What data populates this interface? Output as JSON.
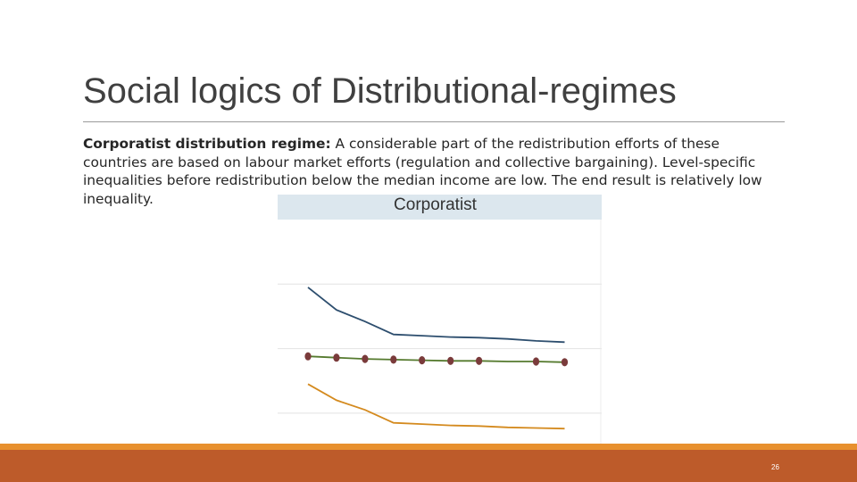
{
  "slide": {
    "title": "Social logics of Distributional-regimes",
    "body_bold": "Corporatist distribution regime:",
    "body_rest": " A considerable part of the redistribution efforts of these countries are based on labour market efforts (regulation and collective bargaining). Level-specific inequalities before redistribution below the median income are low. The end result is relatively low inequality.",
    "page_number": "26"
  },
  "colors": {
    "accent_orange": "#e8902e",
    "footer_rust": "#bd5b2a",
    "panel_header": "#dce7ee"
  },
  "chart_data": {
    "type": "line",
    "title": "Corporatist",
    "x": [
      1,
      2,
      3,
      4,
      5,
      6,
      7,
      8,
      9,
      10
    ],
    "xlim": [
      0.5,
      10.5
    ],
    "ylim": [
      0,
      3.5
    ],
    "grid": true,
    "legend": "none",
    "series": [
      {
        "color": "#2d4e6e",
        "markers": false,
        "values": [
          2.45,
          2.1,
          1.92,
          1.72,
          1.7,
          1.68,
          1.67,
          1.65,
          1.62,
          1.6
        ]
      },
      {
        "color": "#557a2e",
        "markers": true,
        "marker_color": "#7a3b3b",
        "values": [
          1.38,
          1.36,
          1.34,
          1.33,
          1.32,
          1.31,
          1.31,
          1.3,
          1.3,
          1.29
        ]
      },
      {
        "color": "#d48a1e",
        "markers": false,
        "values": [
          0.95,
          0.7,
          0.55,
          0.35,
          0.33,
          0.31,
          0.3,
          0.28,
          0.27,
          0.26
        ]
      }
    ],
    "marker_x": [
      1,
      2,
      3,
      4,
      5,
      6,
      7,
      9,
      10
    ]
  }
}
